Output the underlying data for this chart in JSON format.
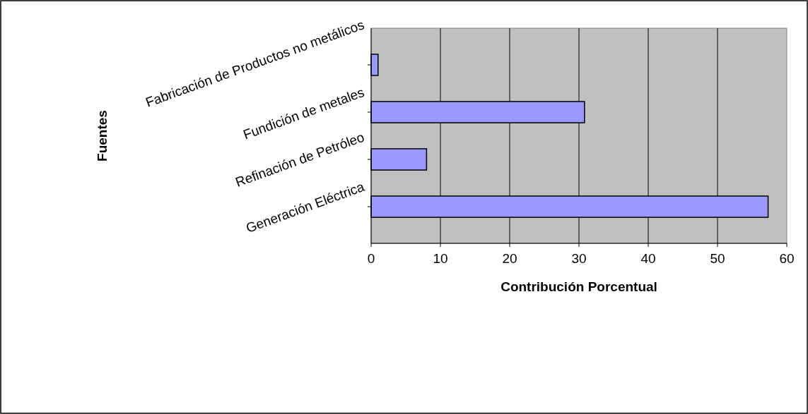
{
  "chart_data": {
    "type": "bar",
    "orientation": "horizontal",
    "categories": [
      "Fabricación de Productos no metálicos",
      "Fundición de metales",
      "Refinación de Petróleo",
      "Generación Eléctrica"
    ],
    "values": [
      1.0,
      30.8,
      8.0,
      57.3
    ],
    "color": "#9999ff",
    "xlim": [
      0,
      60
    ],
    "xticks": [
      0,
      10,
      20,
      30,
      40,
      50,
      60
    ],
    "grid": "x",
    "xlabel": "Contribución Porcentual",
    "ylabel": "Fuentes"
  }
}
